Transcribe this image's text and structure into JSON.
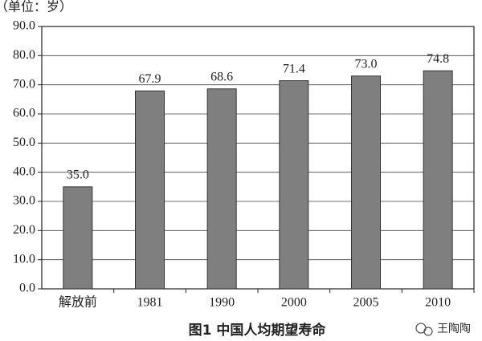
{
  "chart_data": {
    "type": "bar",
    "title": "图1 中国人均期望寿命",
    "unit_label": "（单位：岁）",
    "watermark": "王陶陶",
    "categories": [
      "解放前",
      "1981",
      "1990",
      "2000",
      "2005",
      "2010"
    ],
    "values": [
      35.0,
      67.9,
      68.6,
      71.4,
      73.0,
      74.8
    ],
    "value_labels": [
      "35.0",
      "67.9",
      "68.6",
      "71.4",
      "73.0",
      "74.8"
    ],
    "color": "#7f7f7f",
    "ylim": [
      0,
      90
    ],
    "yticks": [
      {
        "value": 0,
        "label": "0.0"
      },
      {
        "value": 10,
        "label": "10.0"
      },
      {
        "value": 20,
        "label": "20.0"
      },
      {
        "value": 30,
        "label": "30.0"
      },
      {
        "value": 40,
        "label": "40.0"
      },
      {
        "value": 50,
        "label": "50.0"
      },
      {
        "value": 60,
        "label": "60.0"
      },
      {
        "value": 70,
        "label": "70.0"
      },
      {
        "value": 80,
        "label": "80.0"
      },
      {
        "value": 90,
        "label": "90.0"
      }
    ],
    "grid": true
  }
}
